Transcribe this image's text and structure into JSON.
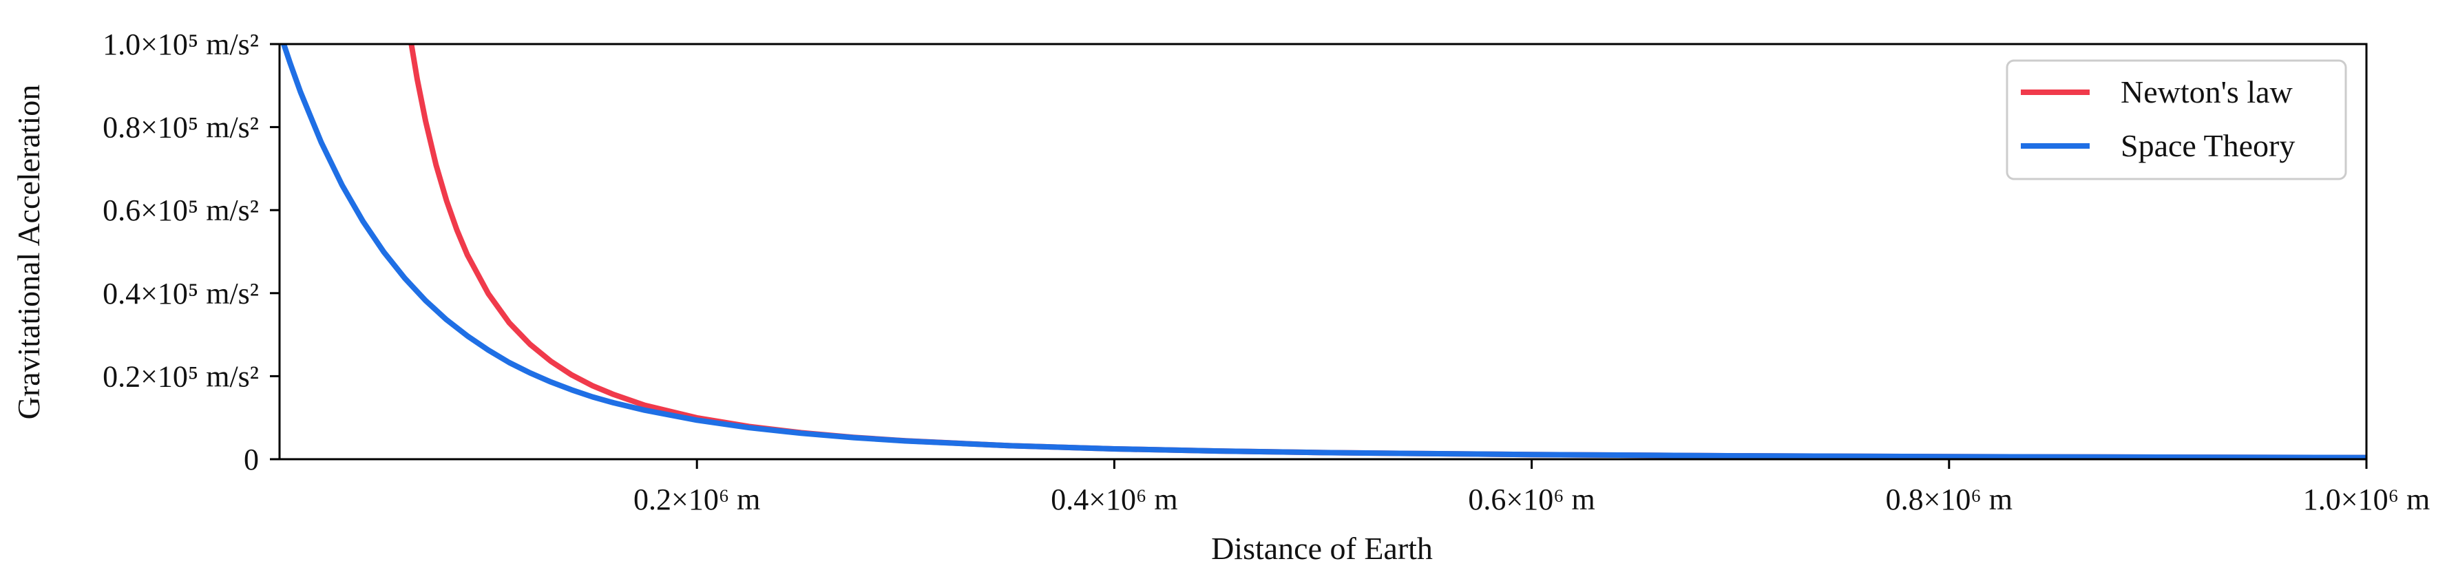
{
  "chart_data": {
    "type": "line",
    "title": "",
    "xlabel": "Distance of Earth",
    "ylabel": "Gravitational Acceleration",
    "xlim": [
      0,
      1000000
    ],
    "ylim": [
      0,
      100000
    ],
    "grid": false,
    "legend_position": "top-right",
    "x_ticks": [
      {
        "value": 200000,
        "label": "0.2×10⁶ m"
      },
      {
        "value": 400000,
        "label": "0.4×10⁶ m"
      },
      {
        "value": 600000,
        "label": "0.6×10⁶ m"
      },
      {
        "value": 800000,
        "label": "0.8×10⁶ m"
      },
      {
        "value": 1000000,
        "label": "1.0×10⁶ m"
      }
    ],
    "y_ticks": [
      {
        "value": 0,
        "label": "0"
      },
      {
        "value": 20000,
        "label": "0.2×10⁵ m/s²"
      },
      {
        "value": 40000,
        "label": "0.4×10⁵ m/s²"
      },
      {
        "value": 60000,
        "label": "0.6×10⁵ m/s²"
      },
      {
        "value": 80000,
        "label": "0.8×10⁵ m/s²"
      },
      {
        "value": 100000,
        "label": "1.0×10⁵ m/s²"
      }
    ],
    "series": [
      {
        "name": "Newton's law",
        "color": "#f03a4b",
        "x": [
          63000,
          66000,
          70000,
          75000,
          80000,
          85000,
          90000,
          100000,
          110000,
          120000,
          130000,
          140000,
          150000,
          160000,
          175000,
          200000,
          225000,
          250000,
          275000,
          300000,
          350000,
          400000,
          450000,
          500000,
          600000,
          700000,
          800000,
          900000,
          1000000
        ],
        "y": [
          100400,
          91500,
          81400,
          70900,
          62300,
          55200,
          49200,
          39900,
          32900,
          27700,
          23600,
          20300,
          17700,
          15600,
          13000,
          9960,
          7870,
          6380,
          5270,
          4430,
          3250,
          2490,
          1970,
          1590,
          1110,
          810,
          620,
          490,
          400
        ]
      },
      {
        "name": "Space Theory",
        "color": "#1f6fe5",
        "x": [
          2000,
          5000,
          10000,
          20000,
          30000,
          40000,
          50000,
          60000,
          70000,
          80000,
          90000,
          100000,
          110000,
          120000,
          130000,
          140000,
          150000,
          160000,
          175000,
          200000,
          225000,
          250000,
          275000,
          300000,
          350000,
          400000,
          450000,
          500000,
          600000,
          700000,
          800000,
          900000,
          1000000
        ],
        "y": [
          100000,
          95500,
          88500,
          76300,
          66000,
          57300,
          49900,
          43600,
          38200,
          33600,
          29700,
          26300,
          23300,
          20800,
          18600,
          16700,
          15000,
          13600,
          11800,
          9400,
          7600,
          6250,
          5200,
          4400,
          3250,
          2490,
          1970,
          1590,
          1110,
          810,
          620,
          490,
          400
        ]
      }
    ]
  }
}
